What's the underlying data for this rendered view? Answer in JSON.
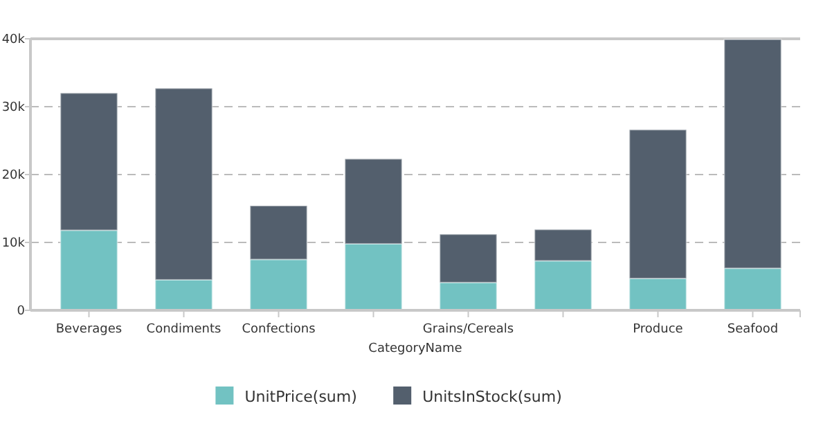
{
  "chart_data": {
    "type": "bar",
    "stacked": true,
    "xlabel": "CategoryName",
    "categories": [
      "Beverages",
      "Condiments",
      "Confections",
      null,
      "Grains/Cereals",
      null,
      "Produce",
      "Seafood"
    ],
    "series": [
      {
        "name": "UnitPrice(sum)",
        "color": "#72c2c2",
        "values": [
          11800,
          4500,
          7500,
          9800,
          4100,
          7300,
          4700,
          6200
        ]
      },
      {
        "name": "UnitsInStock(sum)",
        "color": "#535f6d",
        "values": [
          20200,
          28200,
          7900,
          12500,
          7100,
          4600,
          21900,
          33700
        ]
      }
    ],
    "ylim": [
      0,
      40000
    ],
    "yticks": [
      {
        "value": 0,
        "label": "0"
      },
      {
        "value": 10000,
        "label": "10k"
      },
      {
        "value": 20000,
        "label": "20k"
      },
      {
        "value": 30000,
        "label": "30k"
      },
      {
        "value": 40000,
        "label": "40k"
      }
    ],
    "grid": "y",
    "legend": "bottom"
  }
}
